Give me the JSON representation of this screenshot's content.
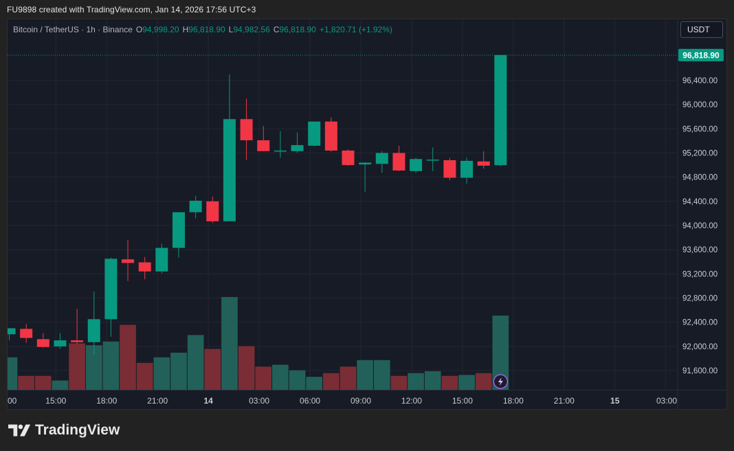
{
  "header": {
    "caption": "FU9898 created with TradingView.com, Jan 14, 2026 17:56 UTC+3"
  },
  "legend": {
    "symbol": "Bitcoin / TetherUS · 1h · Binance",
    "open_label": "O",
    "open": "94,998.20",
    "high_label": "H",
    "high": "96,818.90",
    "low_label": "L",
    "low": "94,982.56",
    "close_label": "C",
    "close": "96,818.90",
    "change": "+1,820.71 (+1.92%)"
  },
  "currency_button": "USDT",
  "brand": {
    "name": "TradingView"
  },
  "colors": {
    "up": "#089981",
    "down": "#f23645",
    "vol_up": "#22615a",
    "vol_down": "#7a2d35",
    "background": "#171b26",
    "grid": "#232734"
  },
  "chart_data": {
    "type": "candlestick",
    "interval": "1h",
    "y_ticks": [
      "96,400.00",
      "96,000.00",
      "95,600.00",
      "95,200.00",
      "94,800.00",
      "94,400.00",
      "94,000.00",
      "93,600.00",
      "93,200.00",
      "92,800.00",
      "92,400.00",
      "92,000.00",
      "91,600.00"
    ],
    "y_tick_values": [
      96400,
      96000,
      95600,
      95200,
      94800,
      94400,
      94000,
      93600,
      93200,
      92800,
      92400,
      92000,
      91600
    ],
    "ylim": [
      91300,
      97300
    ],
    "x_ticks": [
      {
        "label": "00",
        "slot": -0.25
      },
      {
        "label": "15:00",
        "slot": 2.75
      },
      {
        "label": "18:00",
        "slot": 5.75
      },
      {
        "label": "21:00",
        "slot": 8.75
      },
      {
        "label": "14",
        "slot": 11.75,
        "bold": true
      },
      {
        "label": "03:00",
        "slot": 14.75
      },
      {
        "label": "06:00",
        "slot": 17.75
      },
      {
        "label": "09:00",
        "slot": 20.75
      },
      {
        "label": "12:00",
        "slot": 23.75
      },
      {
        "label": "15:00",
        "slot": 26.75
      },
      {
        "label": "18:00",
        "slot": 29.75
      },
      {
        "label": "21:00",
        "slot": 32.75
      },
      {
        "label": "15",
        "slot": 35.75,
        "bold": true
      },
      {
        "label": "03:00",
        "slot": 38.75
      }
    ],
    "last_price": "96,818.90",
    "last_price_value": 96818.9,
    "candles": [
      {
        "o": 92200,
        "h": 92300,
        "l": 92100,
        "c": 92300
      },
      {
        "o": 92290,
        "h": 92370,
        "l": 92060,
        "c": 92140
      },
      {
        "o": 92120,
        "h": 92220,
        "l": 91980,
        "c": 91990
      },
      {
        "o": 92000,
        "h": 92220,
        "l": 91960,
        "c": 92100
      },
      {
        "o": 92100,
        "h": 92620,
        "l": 92040,
        "c": 92070
      },
      {
        "o": 92070,
        "h": 92910,
        "l": 91860,
        "c": 92450
      },
      {
        "o": 92450,
        "h": 93470,
        "l": 92160,
        "c": 93450
      },
      {
        "o": 93440,
        "h": 93760,
        "l": 93080,
        "c": 93380
      },
      {
        "o": 93390,
        "h": 93480,
        "l": 93110,
        "c": 93240
      },
      {
        "o": 93240,
        "h": 93700,
        "l": 93210,
        "c": 93630
      },
      {
        "o": 93630,
        "h": 94200,
        "l": 93470,
        "c": 94220
      },
      {
        "o": 94220,
        "h": 94490,
        "l": 94120,
        "c": 94410
      },
      {
        "o": 94400,
        "h": 94480,
        "l": 94040,
        "c": 94070
      },
      {
        "o": 94070,
        "h": 96500,
        "l": 94070,
        "c": 95760
      },
      {
        "o": 95760,
        "h": 96100,
        "l": 95080,
        "c": 95410
      },
      {
        "o": 95410,
        "h": 95650,
        "l": 95230,
        "c": 95230
      },
      {
        "o": 95230,
        "h": 95560,
        "l": 95120,
        "c": 95240
      },
      {
        "o": 95230,
        "h": 95540,
        "l": 95200,
        "c": 95330
      },
      {
        "o": 95320,
        "h": 95690,
        "l": 95310,
        "c": 95720
      },
      {
        "o": 95720,
        "h": 95790,
        "l": 95220,
        "c": 95240
      },
      {
        "o": 95240,
        "h": 95260,
        "l": 94990,
        "c": 95000
      },
      {
        "o": 95010,
        "h": 95050,
        "l": 94560,
        "c": 95040
      },
      {
        "o": 95020,
        "h": 95230,
        "l": 94870,
        "c": 95200
      },
      {
        "o": 95200,
        "h": 95320,
        "l": 94900,
        "c": 94910
      },
      {
        "o": 94900,
        "h": 95120,
        "l": 94870,
        "c": 95100
      },
      {
        "o": 95080,
        "h": 95290,
        "l": 94900,
        "c": 95090
      },
      {
        "o": 95080,
        "h": 95120,
        "l": 94750,
        "c": 94790
      },
      {
        "o": 94790,
        "h": 95120,
        "l": 94690,
        "c": 95070
      },
      {
        "o": 95060,
        "h": 95230,
        "l": 94940,
        "c": 94990
      },
      {
        "o": 94998.2,
        "h": 96818.9,
        "l": 94982.56,
        "c": 96818.9
      }
    ],
    "volume_max_ref": 1.0,
    "volumes": [
      0.35,
      0.15,
      0.15,
      0.1,
      0.5,
      0.48,
      0.52,
      0.7,
      0.29,
      0.35,
      0.4,
      0.59,
      0.44,
      1.0,
      0.47,
      0.25,
      0.27,
      0.21,
      0.14,
      0.18,
      0.25,
      0.32,
      0.32,
      0.15,
      0.18,
      0.2,
      0.15,
      0.16,
      0.18,
      0.8
    ]
  }
}
